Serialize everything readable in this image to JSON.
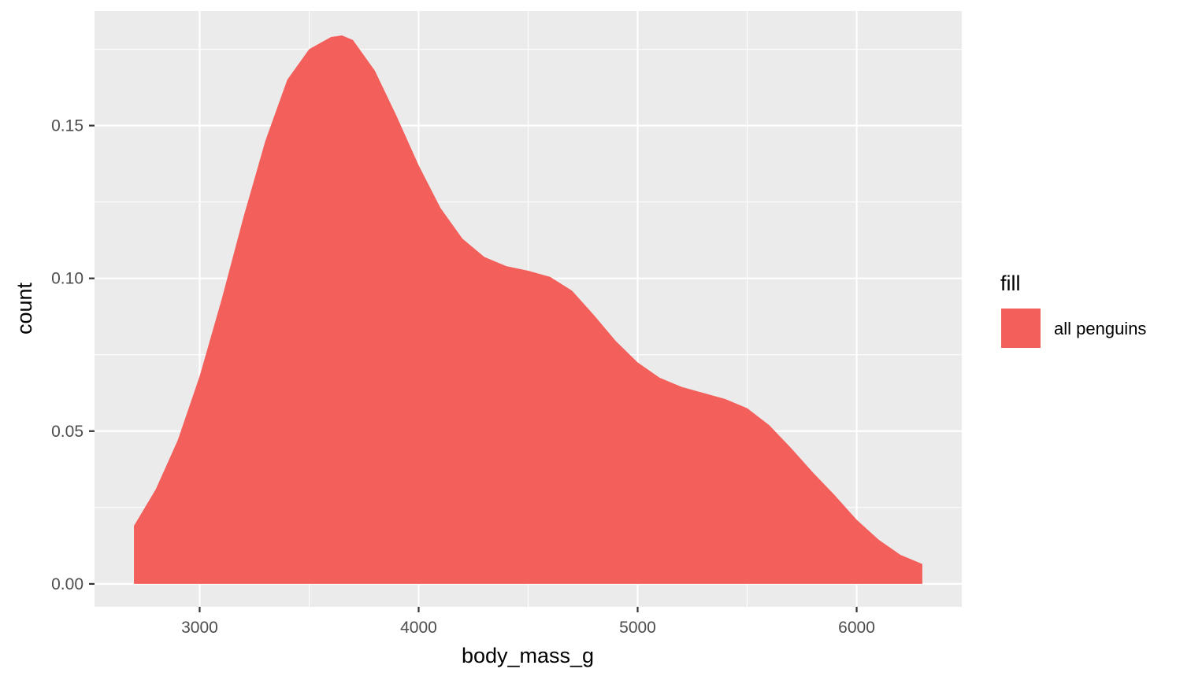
{
  "chart_data": {
    "type": "area",
    "xlabel": "body_mass_g",
    "ylabel": "count",
    "xlim": [
      2520,
      6480
    ],
    "ylim": [
      -0.0075,
      0.1875
    ],
    "x_ticks": [
      3000,
      4000,
      5000,
      6000
    ],
    "x_tick_labels": [
      "3000",
      "4000",
      "5000",
      "6000"
    ],
    "y_ticks": [
      0.0,
      0.05,
      0.1,
      0.15
    ],
    "y_tick_labels": [
      "0.00",
      "0.05",
      "0.10",
      "0.15"
    ],
    "grid": true,
    "legend": {
      "title": "fill",
      "position": "right",
      "entries": [
        {
          "label": "all penguins",
          "color": "#F35F5B"
        }
      ]
    },
    "series": [
      {
        "name": "all penguins",
        "color": "#F35F5B",
        "x": [
          2700,
          2800,
          2900,
          3000,
          3100,
          3200,
          3300,
          3400,
          3500,
          3600,
          3650,
          3700,
          3800,
          3900,
          4000,
          4100,
          4200,
          4300,
          4400,
          4500,
          4600,
          4700,
          4800,
          4900,
          5000,
          5100,
          5200,
          5300,
          5400,
          5500,
          5600,
          5700,
          5800,
          5900,
          6000,
          6100,
          6200,
          6300
        ],
        "values": [
          0.019,
          0.031,
          0.047,
          0.068,
          0.093,
          0.12,
          0.145,
          0.165,
          0.175,
          0.179,
          0.1795,
          0.178,
          0.168,
          0.153,
          0.137,
          0.123,
          0.113,
          0.107,
          0.104,
          0.1025,
          0.1005,
          0.096,
          0.088,
          0.0795,
          0.0725,
          0.0675,
          0.0645,
          0.0625,
          0.0605,
          0.0575,
          0.052,
          0.0445,
          0.0365,
          0.029,
          0.021,
          0.0145,
          0.0095,
          0.0065
        ]
      }
    ]
  }
}
